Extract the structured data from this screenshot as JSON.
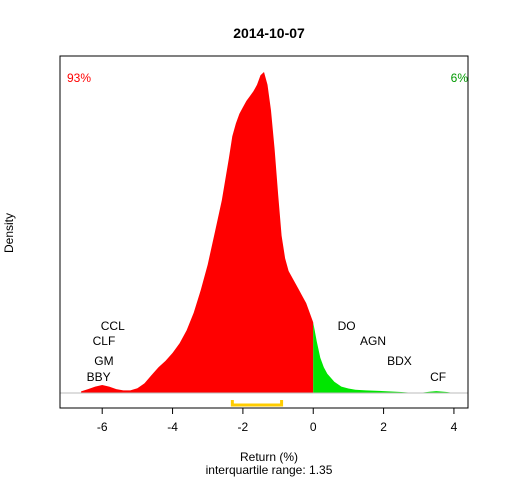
{
  "chart_data": {
    "type": "area",
    "title": "2014-10-07",
    "xlabel": "Return (%)",
    "ylabel": "Density",
    "subtitle": "interquartile range: 1.35",
    "xlim": [
      -7.2,
      4.4
    ],
    "ylim": [
      0,
      1
    ],
    "x_ticks": [
      -6,
      -4,
      -2,
      0,
      2,
      4
    ],
    "threshold": 0,
    "density": {
      "x": [
        -6.6,
        -6.4,
        -6.2,
        -6.0,
        -5.8,
        -5.6,
        -5.4,
        -5.2,
        -5.0,
        -4.8,
        -4.6,
        -4.4,
        -4.2,
        -4.0,
        -3.8,
        -3.6,
        -3.4,
        -3.2,
        -3.0,
        -2.8,
        -2.6,
        -2.4,
        -2.3,
        -2.2,
        -2.1,
        -2.0,
        -1.9,
        -1.8,
        -1.7,
        -1.6,
        -1.5,
        -1.4,
        -1.3,
        -1.2,
        -1.1,
        -1.0,
        -0.9,
        -0.8,
        -0.7,
        -0.6,
        -0.5,
        -0.4,
        -0.3,
        -0.2,
        -0.1,
        0.0,
        0.1,
        0.2,
        0.3,
        0.4,
        0.6,
        0.8,
        1.0,
        1.2,
        1.5,
        2.0,
        2.5,
        2.8,
        3.0,
        3.3,
        3.5,
        3.8,
        4.0
      ],
      "y": [
        0.005,
        0.012,
        0.02,
        0.025,
        0.02,
        0.012,
        0.008,
        0.008,
        0.015,
        0.03,
        0.055,
        0.08,
        0.1,
        0.125,
        0.155,
        0.195,
        0.25,
        0.32,
        0.4,
        0.5,
        0.6,
        0.73,
        0.8,
        0.84,
        0.87,
        0.89,
        0.91,
        0.925,
        0.94,
        0.96,
        0.99,
        1.0,
        0.96,
        0.88,
        0.76,
        0.62,
        0.49,
        0.42,
        0.38,
        0.36,
        0.34,
        0.32,
        0.3,
        0.28,
        0.25,
        0.22,
        0.16,
        0.11,
        0.08,
        0.06,
        0.035,
        0.02,
        0.014,
        0.01,
        0.008,
        0.006,
        0.003,
        0.001,
        0.0,
        0.004,
        0.006,
        0.003,
        0.0
      ]
    },
    "left_percent": "93%",
    "right_percent": "6%",
    "left_color": "#ff0000",
    "right_color": "#00e600",
    "iqr_color": "#ffcc00",
    "iqr_range": [
      -2.3,
      -0.9
    ],
    "left_labels": [
      {
        "text": "CCL",
        "x": -5.7,
        "level": 3
      },
      {
        "text": "CLF",
        "x": -5.95,
        "level": 2
      },
      {
        "text": "GM",
        "x": -5.95,
        "level": 1
      },
      {
        "text": "BBY",
        "x": -6.1,
        "level": 0
      }
    ],
    "right_labels": [
      {
        "text": "DO",
        "x": 0.95,
        "level": 3
      },
      {
        "text": "AGN",
        "x": 1.7,
        "level": 2
      },
      {
        "text": "BDX",
        "x": 2.45,
        "level": 1
      },
      {
        "text": "CF",
        "x": 3.55,
        "level": 0
      }
    ]
  }
}
